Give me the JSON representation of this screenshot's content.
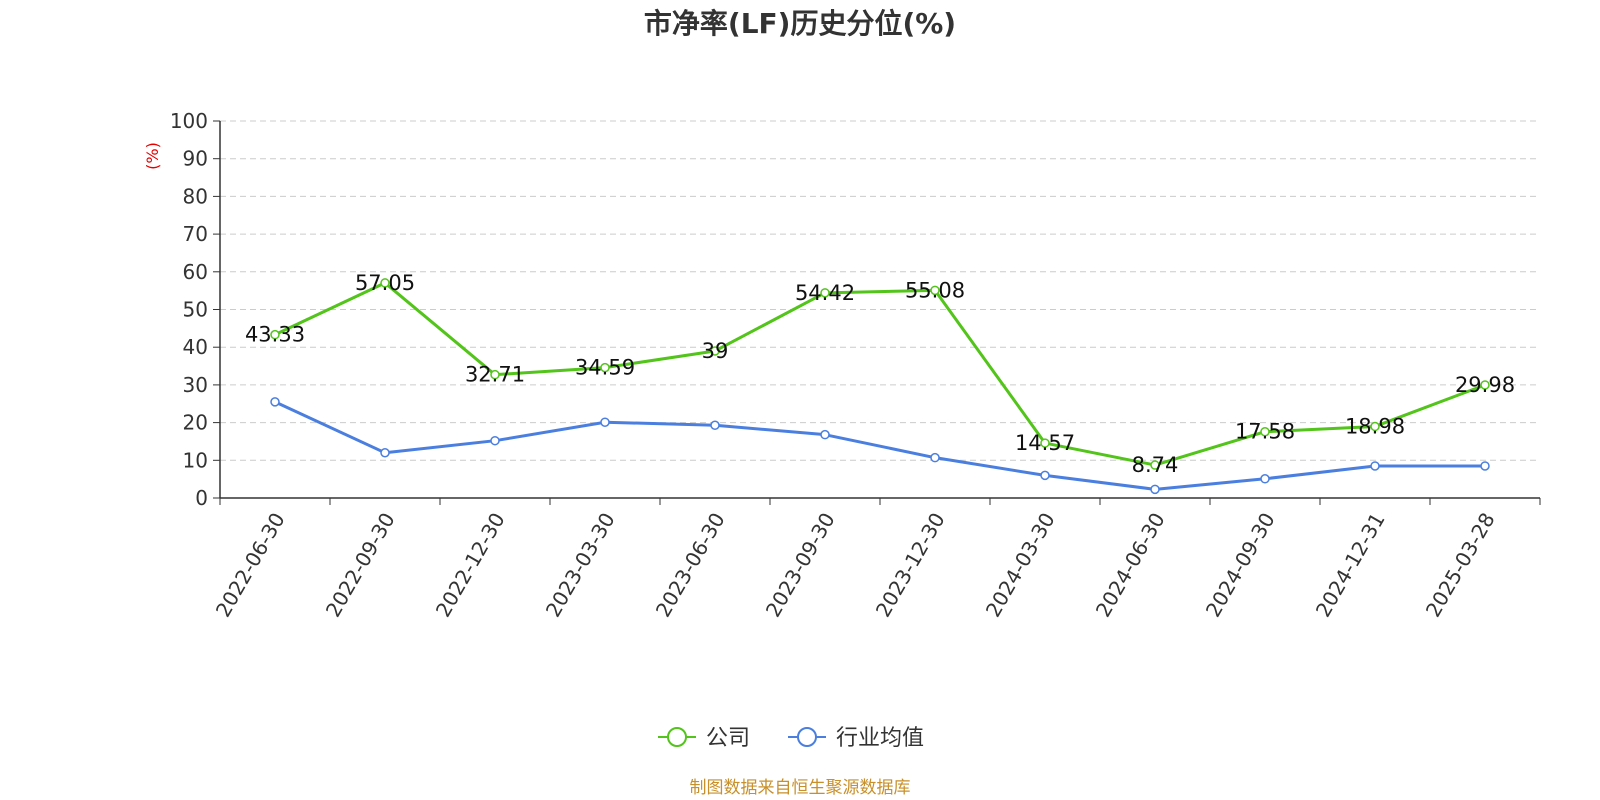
{
  "chart_data": {
    "type": "line",
    "title": "市净率(LF)历史分位(%)",
    "y_unit_label": "(%)",
    "categories": [
      "2022-06-30",
      "2022-09-30",
      "2022-12-30",
      "2023-03-30",
      "2023-06-30",
      "2023-09-30",
      "2023-12-30",
      "2024-03-30",
      "2024-06-30",
      "2024-09-30",
      "2024-12-31",
      "2025-03-28"
    ],
    "ylim": [
      0,
      100
    ],
    "yticks": [
      "0",
      "10",
      "20",
      "30",
      "40",
      "50",
      "60",
      "70",
      "80",
      "90",
      "100"
    ],
    "grid": true,
    "legend_position": "bottom-center",
    "series": [
      {
        "name": "公司",
        "color": "#52c41a",
        "values": [
          43.33,
          57.05,
          32.71,
          34.59,
          39,
          54.42,
          55.08,
          14.57,
          8.74,
          17.58,
          18.98,
          29.98
        ],
        "show_labels": true
      },
      {
        "name": "行业均值",
        "color": "#4a7fe0",
        "values": [
          25.5,
          12.0,
          15.2,
          20.1,
          19.3,
          16.8,
          10.7,
          6.0,
          2.3,
          5.1,
          8.5,
          8.5
        ],
        "show_labels": false
      }
    ]
  },
  "source_text": "制图数据来自恒生聚源数据库",
  "colors": {
    "unit": "#e60000",
    "source": "#c8902a",
    "axis": "#333333",
    "grid": "#cccccc"
  }
}
